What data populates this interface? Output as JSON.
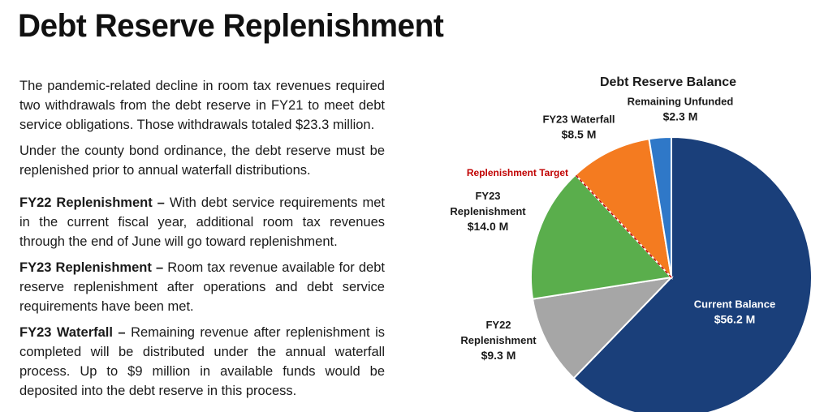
{
  "page": {
    "title": "Debt Reserve Replenishment"
  },
  "text": {
    "p1": "The pandemic-related decline in room tax revenues required two withdrawals from the debt reserve in FY21 to meet debt service obligations. Those withdrawals totaled $23.3 million.",
    "p2": "Under the county bond ordinance, the debt reserve must be replenished prior to annual waterfall distributions.",
    "fy22_heading": "FY22 Replenishment –",
    "fy22_body": " With debt service requirements met in the current fiscal year, additional room tax revenues through the end of June will go toward replenishment.",
    "fy23_heading": "FY23 Replenishment –",
    "fy23_body": " Room tax revenue available for debt reserve replenishment after operations and debt service requirements have been met.",
    "waterfall_heading": "FY23 Waterfall –",
    "waterfall_body": " Remaining revenue after replenishment is completed will be distributed under the annual waterfall process. Up to $9 million in available funds would be deposited into the debt reserve in this process."
  },
  "chart_data": {
    "type": "pie",
    "title": "Debt Reserve Balance",
    "units": "$M",
    "slices": [
      {
        "name": "Current Balance",
        "value": 56.2,
        "value_label": "$56.2 M",
        "label_lines": [
          "Current Balance"
        ],
        "color": "#1a3f7a",
        "label_color": "#ffffff"
      },
      {
        "name": "FY22 Replenishment",
        "value": 9.3,
        "value_label": "$9.3 M",
        "label_lines": [
          "FY22",
          "Replenishment"
        ],
        "color": "#a6a6a6",
        "label_color": "#1a1a1a"
      },
      {
        "name": "FY23 Replenishment",
        "value": 14.0,
        "value_label": "$14.0 M",
        "label_lines": [
          "FY23",
          "Replenishment"
        ],
        "color": "#5aae4c",
        "label_color": "#1a1a1a"
      },
      {
        "name": "FY23 Waterfall",
        "value": 8.5,
        "value_label": "$8.5 M",
        "label_lines": [
          "FY23 Waterfall"
        ],
        "color": "#f47b20",
        "label_color": "#1a1a1a"
      },
      {
        "name": "Remaining Unfunded",
        "value": 2.3,
        "value_label": "$2.3 M",
        "label_lines": [
          "Remaining Unfunded"
        ],
        "color": "#2f78c8",
        "label_color": "#1a1a1a"
      }
    ],
    "annotation": {
      "text": "Replenishment Target",
      "color": "#c00000",
      "boundary_after_slice": "FY23 Replenishment"
    }
  }
}
